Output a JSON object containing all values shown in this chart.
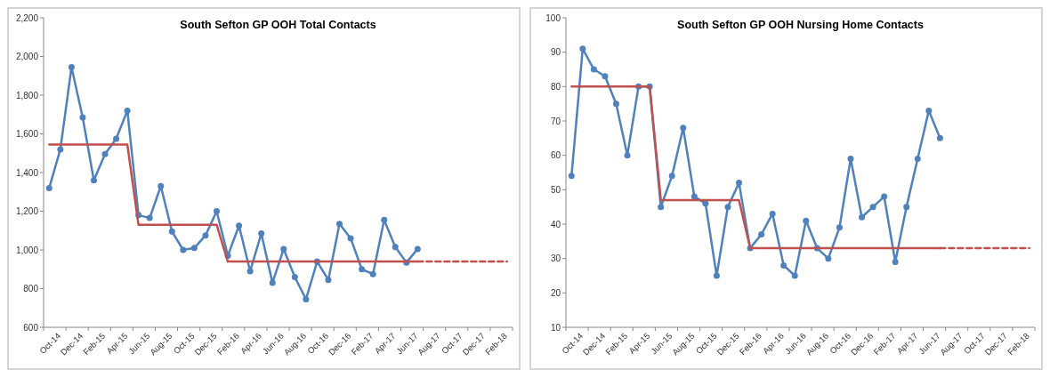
{
  "chart_data": [
    {
      "type": "line",
      "title": "South Sefton GP OOH Total Contacts",
      "categories": [
        "Oct-14",
        null,
        "Dec-14",
        null,
        "Feb-15",
        null,
        "Apr-15",
        null,
        "Jun-15",
        null,
        "Aug-15",
        null,
        "Oct-15",
        null,
        "Dec-15",
        null,
        "Feb-16",
        null,
        "Apr-16",
        null,
        "Jun-16",
        null,
        "Aug-16",
        null,
        "Oct-16",
        null,
        "Dec-16",
        null,
        "Feb-17",
        null,
        "Apr-17",
        null,
        "Jun-17",
        null,
        "Aug-17",
        null,
        "Oct-17",
        null,
        "Dec-17",
        null,
        "Feb-18",
        null
      ],
      "ylim": [
        600,
        2200
      ],
      "yticks": [
        {
          "value": 600,
          "label": "600"
        },
        {
          "value": 800,
          "label": "800"
        },
        {
          "value": 1000,
          "label": "1,000"
        },
        {
          "value": 1200,
          "label": "1,200"
        },
        {
          "value": 1400,
          "label": "1,400"
        },
        {
          "value": 1600,
          "label": "1,600"
        },
        {
          "value": 1800,
          "label": "1,800"
        },
        {
          "value": 2000,
          "label": "2,000"
        },
        {
          "value": 2200,
          "label": "2,200"
        }
      ],
      "series": [
        {
          "color": "#4f81bd",
          "marker": "circle",
          "line_style": "solid",
          "values": [
            1320,
            1520,
            1945,
            1685,
            1360,
            1495,
            1575,
            1720,
            1180,
            1165,
            1330,
            1095,
            1000,
            1010,
            1075,
            1200,
            970,
            1125,
            890,
            1085,
            830,
            1005,
            860,
            745,
            940,
            845,
            1135,
            1060,
            900,
            875,
            1155,
            1015,
            935,
            1005,
            null,
            null,
            null,
            null,
            null,
            null,
            null,
            null
          ]
        },
        {
          "color": "#c0504d",
          "marker": "none",
          "line_style": "solid",
          "values": [
            1545,
            1545,
            1545,
            1545,
            1545,
            1545,
            1545,
            1545,
            1130,
            1130,
            1130,
            1130,
            1130,
            1130,
            1130,
            1130,
            940,
            940,
            940,
            940,
            940,
            940,
            940,
            940,
            940,
            940,
            940,
            940,
            940,
            940,
            940,
            940,
            940,
            940,
            null,
            null,
            null,
            null,
            null,
            null,
            null,
            null
          ]
        },
        {
          "color": "#c0504d",
          "marker": "none",
          "line_style": "dashed",
          "values": [
            null,
            null,
            null,
            null,
            null,
            null,
            null,
            null,
            null,
            null,
            null,
            null,
            null,
            null,
            null,
            null,
            null,
            null,
            null,
            null,
            null,
            null,
            null,
            null,
            null,
            null,
            null,
            null,
            null,
            null,
            null,
            null,
            null,
            940,
            940,
            940,
            940,
            940,
            940,
            940,
            940,
            940
          ]
        }
      ]
    },
    {
      "type": "line",
      "title": "South Sefton GP OOH Nursing Home Contacts",
      "categories": [
        "Oct-14",
        null,
        "Dec-14",
        null,
        "Feb-15",
        null,
        "Apr-15",
        null,
        "Jun-15",
        null,
        "Aug-15",
        null,
        "Oct-15",
        null,
        "Dec-15",
        null,
        "Feb-16",
        null,
        "Apr-16",
        null,
        "Jun-16",
        null,
        "Aug-16",
        null,
        "Oct-16",
        null,
        "Dec-16",
        null,
        "Feb-17",
        null,
        "Apr-17",
        null,
        "Jun-17",
        null,
        "Aug-17",
        null,
        "Oct-17",
        null,
        "Dec-17",
        null,
        "Feb-18",
        null
      ],
      "ylim": [
        10,
        100
      ],
      "yticks": [
        10,
        20,
        30,
        40,
        50,
        60,
        70,
        80,
        90,
        100
      ],
      "series": [
        {
          "color": "#4f81bd",
          "marker": "circle",
          "line_style": "solid",
          "values": [
            54,
            91,
            85,
            83,
            75,
            60,
            80,
            80,
            45,
            54,
            68,
            48,
            46,
            25,
            45,
            52,
            33,
            37,
            43,
            28,
            25,
            41,
            33,
            30,
            39,
            59,
            42,
            45,
            48,
            29,
            45,
            59,
            73,
            65,
            null,
            null,
            null,
            null,
            null,
            null,
            null,
            null
          ]
        },
        {
          "color": "#c0504d",
          "marker": "none",
          "line_style": "solid",
          "values": [
            80,
            80,
            80,
            80,
            80,
            80,
            80,
            80,
            47,
            47,
            47,
            47,
            47,
            47,
            47,
            47,
            33,
            33,
            33,
            33,
            33,
            33,
            33,
            33,
            33,
            33,
            33,
            33,
            33,
            33,
            33,
            33,
            33,
            33,
            null,
            null,
            null,
            null,
            null,
            null,
            null,
            null
          ]
        },
        {
          "color": "#c0504d",
          "marker": "none",
          "line_style": "dashed",
          "values": [
            null,
            null,
            null,
            null,
            null,
            null,
            null,
            null,
            null,
            null,
            null,
            null,
            null,
            null,
            null,
            null,
            null,
            null,
            null,
            null,
            null,
            null,
            null,
            null,
            null,
            null,
            null,
            null,
            null,
            null,
            null,
            null,
            null,
            33,
            33,
            33,
            33,
            33,
            33,
            33,
            33,
            33
          ]
        }
      ]
    }
  ]
}
